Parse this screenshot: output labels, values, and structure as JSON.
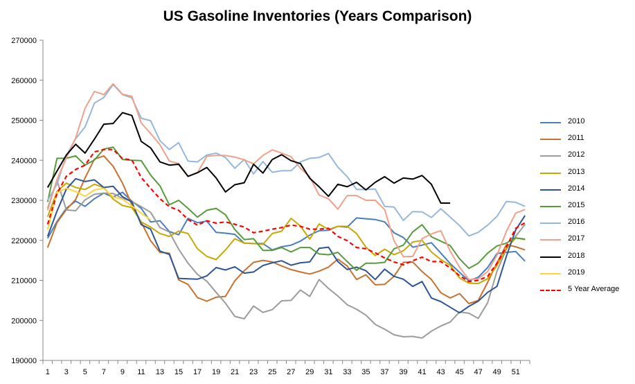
{
  "chart_data": {
    "type": "line",
    "title": "US Gasoline Inventories (Years Comparison)",
    "xlabel": "",
    "ylabel": "",
    "xlim": [
      1,
      52
    ],
    "ylim": [
      190000,
      270000
    ],
    "y_ticks": [
      "190000",
      "200000",
      "210000",
      "220000",
      "230000",
      "240000",
      "250000",
      "260000",
      "270000"
    ],
    "x_ticks": [
      "1",
      "3",
      "5",
      "7",
      "9",
      "11",
      "13",
      "15",
      "17",
      "19",
      "21",
      "23",
      "25",
      "27",
      "29",
      "31",
      "33",
      "35",
      "37",
      "39",
      "41",
      "43",
      "45",
      "47",
      "49",
      "51"
    ],
    "grid": false,
    "legend": "right",
    "series": [
      {
        "name": "2010",
        "color": "#4a7ebb",
        "dash": false,
        "values": [
          220500,
          224700,
          228000,
          229800,
          228500,
          230400,
          231800,
          230800,
          232000,
          229800,
          228000,
          224600,
          224900,
          222200,
          221400,
          225500,
          224400,
          224800,
          222000,
          221800,
          221500,
          219300,
          219200,
          219200,
          217600,
          218400,
          218800,
          219800,
          221300,
          222400,
          222500,
          223500,
          223300,
          225600,
          225400,
          225200,
          224600,
          221900,
          220700,
          218300,
          218800,
          219400,
          216800,
          214200,
          212000,
          209900,
          210800,
          213200,
          216700,
          217000,
          217200,
          214800
        ]
      },
      {
        "name": "2011",
        "color": "#c8702d",
        "dash": false,
        "values": [
          218200,
          224400,
          227700,
          230200,
          235600,
          240300,
          241100,
          238500,
          234300,
          228900,
          224500,
          219900,
          217000,
          216800,
          210100,
          209000,
          205700,
          204800,
          205800,
          206000,
          209900,
          212400,
          214500,
          215000,
          214600,
          213600,
          212700,
          212100,
          211600,
          212300,
          213300,
          215300,
          213600,
          210200,
          211400,
          208900,
          209000,
          211000,
          214500,
          214600,
          212200,
          210200,
          206900,
          205600,
          206700,
          204200,
          205000,
          209500,
          214400,
          218900,
          218400,
          217600
        ]
      },
      {
        "name": "2012",
        "color": "#9b9b9b",
        "dash": false,
        "values": [
          228000,
          235000,
          227600,
          227400,
          230100,
          231500,
          231800,
          231700,
          230500,
          229700,
          228400,
          227000,
          223200,
          222100,
          217800,
          214300,
          211500,
          209800,
          207000,
          204300,
          201000,
          200400,
          203600,
          202000,
          202700,
          204900,
          205000,
          207600,
          206000,
          210200,
          208000,
          206100,
          203900,
          202800,
          201300,
          199000,
          197800,
          196400,
          195900,
          196000,
          195600,
          197300,
          198600,
          199600,
          202100,
          201800,
          200500,
          204400,
          212300,
          217800,
          221000,
          224000
        ]
      },
      {
        "name": "2013",
        "color": "#c8a800",
        "dash": false,
        "values": [
          225900,
          232200,
          234300,
          233200,
          232700,
          234000,
          233200,
          230300,
          228700,
          228200,
          224600,
          223300,
          221700,
          221000,
          222300,
          221700,
          217900,
          216000,
          215200,
          217600,
          220400,
          219300,
          219200,
          219000,
          221700,
          222300,
          225500,
          223600,
          220300,
          224100,
          222700,
          223500,
          223500,
          221700,
          218300,
          216200,
          217800,
          216400,
          217400,
          219600,
          220000,
          217100,
          215200,
          213800,
          210600,
          209300,
          209200,
          210400,
          213700,
          218000,
          220600,
          220200
        ]
      },
      {
        "name": "2014",
        "color": "#2d5596",
        "dash": false,
        "values": [
          221000,
          227300,
          232800,
          235400,
          234700,
          235100,
          233200,
          233500,
          230900,
          229600,
          223900,
          222800,
          217300,
          216500,
          210500,
          210400,
          210300,
          211100,
          213200,
          212600,
          213400,
          211800,
          212100,
          213700,
          214400,
          214900,
          213800,
          214400,
          214600,
          218000,
          218300,
          214700,
          212700,
          213300,
          212400,
          210200,
          212800,
          211000,
          210300,
          208500,
          209700,
          205600,
          204700,
          203300,
          201900,
          203500,
          204800,
          207000,
          208500,
          216000,
          222600,
          226200
        ]
      },
      {
        "name": "2015",
        "color": "#569a3a",
        "dash": false,
        "values": [
          229600,
          240500,
          240500,
          241100,
          238800,
          240100,
          242800,
          243300,
          240200,
          240000,
          239900,
          236300,
          233600,
          228900,
          230000,
          228000,
          225800,
          227500,
          228000,
          226400,
          222700,
          220200,
          220400,
          217500,
          217500,
          218200,
          217100,
          218200,
          218200,
          216600,
          216400,
          217000,
          214700,
          212500,
          214300,
          214300,
          214500,
          217900,
          218800,
          222100,
          223900,
          220900,
          219800,
          218700,
          215400,
          213000,
          214300,
          216800,
          218600,
          219300,
          220600,
          220300
        ]
      },
      {
        "name": "2016",
        "color": "#95b7dd",
        "dash": false,
        "values": [
          230000,
          234000,
          241200,
          245400,
          248300,
          254300,
          255700,
          258900,
          256400,
          255600,
          250500,
          249900,
          244900,
          242700,
          244400,
          239800,
          239600,
          241300,
          241800,
          240700,
          238000,
          240200,
          236600,
          239700,
          237000,
          237400,
          237400,
          239600,
          240500,
          240700,
          241700,
          238300,
          235900,
          232700,
          232700,
          232800,
          228500,
          228300,
          225000,
          227200,
          227100,
          225700,
          227900,
          225800,
          223700,
          221100,
          222000,
          223800,
          226000,
          229700,
          229500,
          228500
        ]
      },
      {
        "name": "2017",
        "color": "#efa08a",
        "dash": false,
        "values": [
          227500,
          235200,
          240600,
          245600,
          253000,
          257200,
          256400,
          259100,
          256500,
          256000,
          249300,
          246700,
          243900,
          239800,
          239200,
          236000,
          236900,
          241000,
          241200,
          241200,
          240800,
          240100,
          239100,
          241200,
          242600,
          241800,
          240900,
          238000,
          235900,
          231300,
          230400,
          227800,
          231200,
          231200,
          230000,
          230000,
          227700,
          219900,
          215900,
          216000,
          220400,
          221600,
          222400,
          217300,
          213300,
          210200,
          210400,
          212200,
          216300,
          222200,
          226800,
          227700
        ]
      },
      {
        "name": "2018",
        "color": "#000000",
        "dash": false,
        "values": [
          233200,
          237300,
          241300,
          244000,
          241800,
          245300,
          249000,
          249200,
          251900,
          251200,
          244700,
          243100,
          239600,
          238800,
          239000,
          236000,
          236900,
          238200,
          235600,
          232100,
          233900,
          234400,
          239000,
          236800,
          240200,
          241400,
          239900,
          239200,
          235500,
          233400,
          231000,
          234000,
          233400,
          234500,
          232600,
          234500,
          235900,
          234300,
          235600,
          235300,
          236200,
          234000,
          229300,
          229300
        ]
      },
      {
        "name": "2019",
        "color": "#ffd33a",
        "dash": false,
        "values": [
          222700,
          232000,
          233000,
          232200,
          231000,
          232600,
          233000,
          230800,
          230300,
          228600,
          226800,
          225100
        ]
      },
      {
        "name": "5 Year Average",
        "color": "#ff0000",
        "dash": true,
        "values": [
          224000,
          231700,
          236000,
          237700,
          238800,
          242100,
          242700,
          242700,
          240400,
          240100,
          235700,
          233000,
          230400,
          228400,
          227500,
          225200,
          223800,
          224900,
          224300,
          224600,
          224000,
          223300,
          221900,
          222300,
          222800,
          223200,
          223800,
          223500,
          222800,
          222800,
          223000,
          221000,
          219900,
          218200,
          217900,
          216900,
          215600,
          214600,
          213900,
          214900,
          215800,
          214700,
          214700,
          213100,
          211200,
          209700,
          210000,
          211000,
          214300,
          218300,
          223000,
          224400
        ]
      }
    ]
  }
}
